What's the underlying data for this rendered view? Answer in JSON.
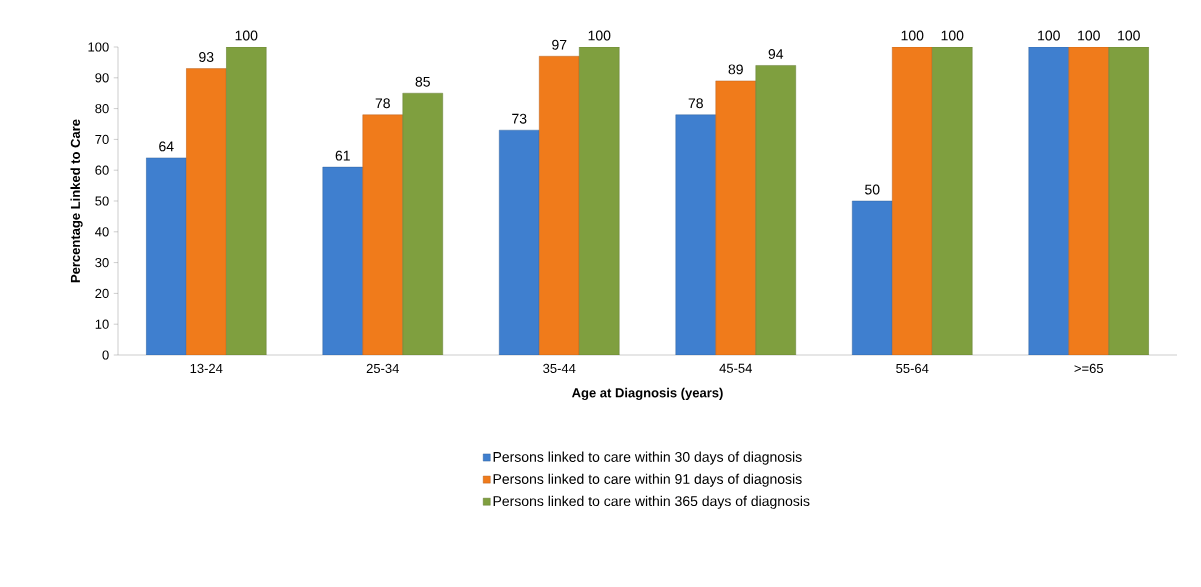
{
  "chart_data": {
    "type": "bar",
    "xlabel": "Age at Diagnosis (years)",
    "ylabel": "Percentage Linked to Care",
    "categories": [
      "13-24",
      "25-34",
      "35-44",
      "45-54",
      "55-64",
      ">=65"
    ],
    "series": [
      {
        "name": "Persons linked to care within 30 days of diagnosis",
        "color": "#3f7fcf",
        "values": [
          64,
          61,
          73,
          78,
          50,
          100
        ]
      },
      {
        "name": "Persons linked to care within 91 days of diagnosis",
        "color": "#f07b1b",
        "values": [
          93,
          78,
          97,
          89,
          100,
          100
        ]
      },
      {
        "name": "Persons linked to care within 365 days of diagnosis",
        "color": "#7f9f3f",
        "values": [
          100,
          85,
          100,
          94,
          100,
          100
        ]
      }
    ],
    "ylim": [
      0,
      100
    ],
    "yticks": [
      0,
      10,
      20,
      30,
      40,
      50,
      60,
      70,
      80,
      90,
      100
    ],
    "data_labels": true,
    "grid": false,
    "legend": "bottom"
  }
}
